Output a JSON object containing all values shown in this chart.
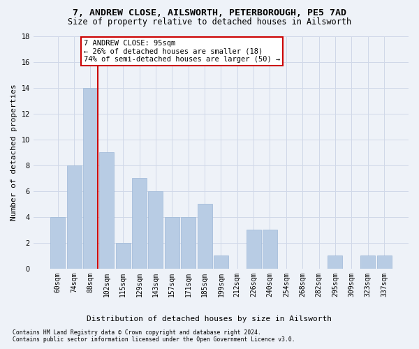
{
  "title1": "7, ANDREW CLOSE, AILSWORTH, PETERBOROUGH, PE5 7AD",
  "title2": "Size of property relative to detached houses in Ailsworth",
  "xlabel": "Distribution of detached houses by size in Ailsworth",
  "ylabel": "Number of detached properties",
  "categories": [
    "60sqm",
    "74sqm",
    "88sqm",
    "102sqm",
    "115sqm",
    "129sqm",
    "143sqm",
    "157sqm",
    "171sqm",
    "185sqm",
    "199sqm",
    "212sqm",
    "226sqm",
    "240sqm",
    "254sqm",
    "268sqm",
    "282sqm",
    "295sqm",
    "309sqm",
    "323sqm",
    "337sqm"
  ],
  "values": [
    4,
    8,
    14,
    9,
    2,
    7,
    6,
    4,
    4,
    5,
    1,
    0,
    3,
    3,
    0,
    0,
    0,
    1,
    0,
    1,
    1
  ],
  "bar_color": "#b8cce4",
  "bar_edgecolor": "#9db8d8",
  "grid_color": "#d0d8e8",
  "vline_index": 2,
  "vline_color": "#cc0000",
  "annotation_line1": "7 ANDREW CLOSE: 95sqm",
  "annotation_line2": "← 26% of detached houses are smaller (18)",
  "annotation_line3": "74% of semi-detached houses are larger (50) →",
  "annotation_box_edgecolor": "#cc0000",
  "footnote1": "Contains HM Land Registry data © Crown copyright and database right 2024.",
  "footnote2": "Contains public sector information licensed under the Open Government Licence v3.0.",
  "ylim": [
    0,
    18
  ],
  "yticks": [
    0,
    2,
    4,
    6,
    8,
    10,
    12,
    14,
    16,
    18
  ],
  "background_color": "#eef2f8",
  "title1_fontsize": 9.5,
  "title2_fontsize": 8.5,
  "ylabel_fontsize": 8,
  "xlabel_fontsize": 8,
  "tick_fontsize": 7,
  "annot_fontsize": 7.5
}
